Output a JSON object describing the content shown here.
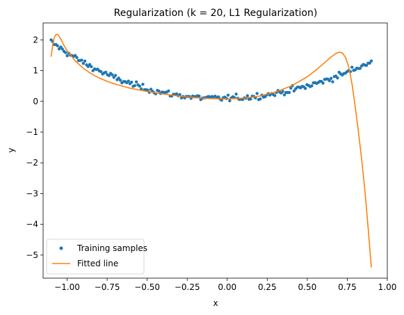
{
  "chart_data": {
    "type": "scatter",
    "title": "Regularization (k = 20, L1 Regularization)",
    "xlabel": "x",
    "ylabel": "y",
    "xlim": [
      -1.15,
      1.0
    ],
    "ylim": [
      -5.75,
      2.55
    ],
    "xticks": [
      -1.0,
      -0.75,
      -0.5,
      -0.25,
      0.0,
      0.25,
      0.5,
      0.75,
      1.0
    ],
    "xtick_labels": [
      "−1.00",
      "−0.75",
      "−0.50",
      "−0.25",
      "0.00",
      "0.25",
      "0.50",
      "0.75",
      "1.00"
    ],
    "yticks": [
      2,
      1,
      0,
      -1,
      -2,
      -3,
      -4,
      -5
    ],
    "ytick_labels": [
      "2",
      "1",
      "0",
      "−1",
      "−2",
      "−3",
      "−4",
      "−5"
    ],
    "grid": false,
    "legend": {
      "placement": "lower-left",
      "entries": [
        {
          "label": "Training samples",
          "kind": "scatter",
          "color": "#1f77b4"
        },
        {
          "label": "Fitted line",
          "kind": "line",
          "color": "#ff7f0e"
        }
      ]
    },
    "series": [
      {
        "name": "Training samples",
        "kind": "scatter",
        "color": "#1f77b4",
        "x_range": [
          -1.1,
          0.9
        ],
        "point_count": 200,
        "trend_note": "noisy U shape: about 2.1 at x=-1.1, about 0.15 at x=0, rising to about 1.3 at x=0.9"
      },
      {
        "name": "Fitted line",
        "kind": "line",
        "color": "#ff7f0e",
        "x": [
          -1.1,
          -1.09,
          -1.08,
          -1.07,
          -1.06,
          -1.05,
          -1.04,
          -1.03,
          -1.02,
          -1.0,
          -0.95,
          -0.9,
          -0.85,
          -0.8,
          -0.75,
          -0.7,
          -0.6,
          -0.5,
          -0.4,
          -0.3,
          -0.2,
          -0.1,
          0.0,
          0.1,
          0.2,
          0.3,
          0.4,
          0.5,
          0.55,
          0.6,
          0.65,
          0.68,
          0.7,
          0.72,
          0.74,
          0.76,
          0.78,
          0.8,
          0.82,
          0.84,
          0.86,
          0.88,
          0.9
        ],
        "y": [
          1.45,
          1.85,
          2.08,
          2.17,
          2.18,
          2.12,
          2.03,
          1.93,
          1.82,
          1.65,
          1.32,
          1.08,
          0.9,
          0.76,
          0.65,
          0.56,
          0.42,
          0.32,
          0.24,
          0.17,
          0.12,
          0.09,
          0.08,
          0.1,
          0.17,
          0.3,
          0.5,
          0.8,
          1.0,
          1.22,
          1.45,
          1.56,
          1.6,
          1.57,
          1.42,
          1.1,
          0.55,
          -0.2,
          -1.0,
          -1.9,
          -2.9,
          -4.1,
          -5.4
        ]
      }
    ]
  }
}
